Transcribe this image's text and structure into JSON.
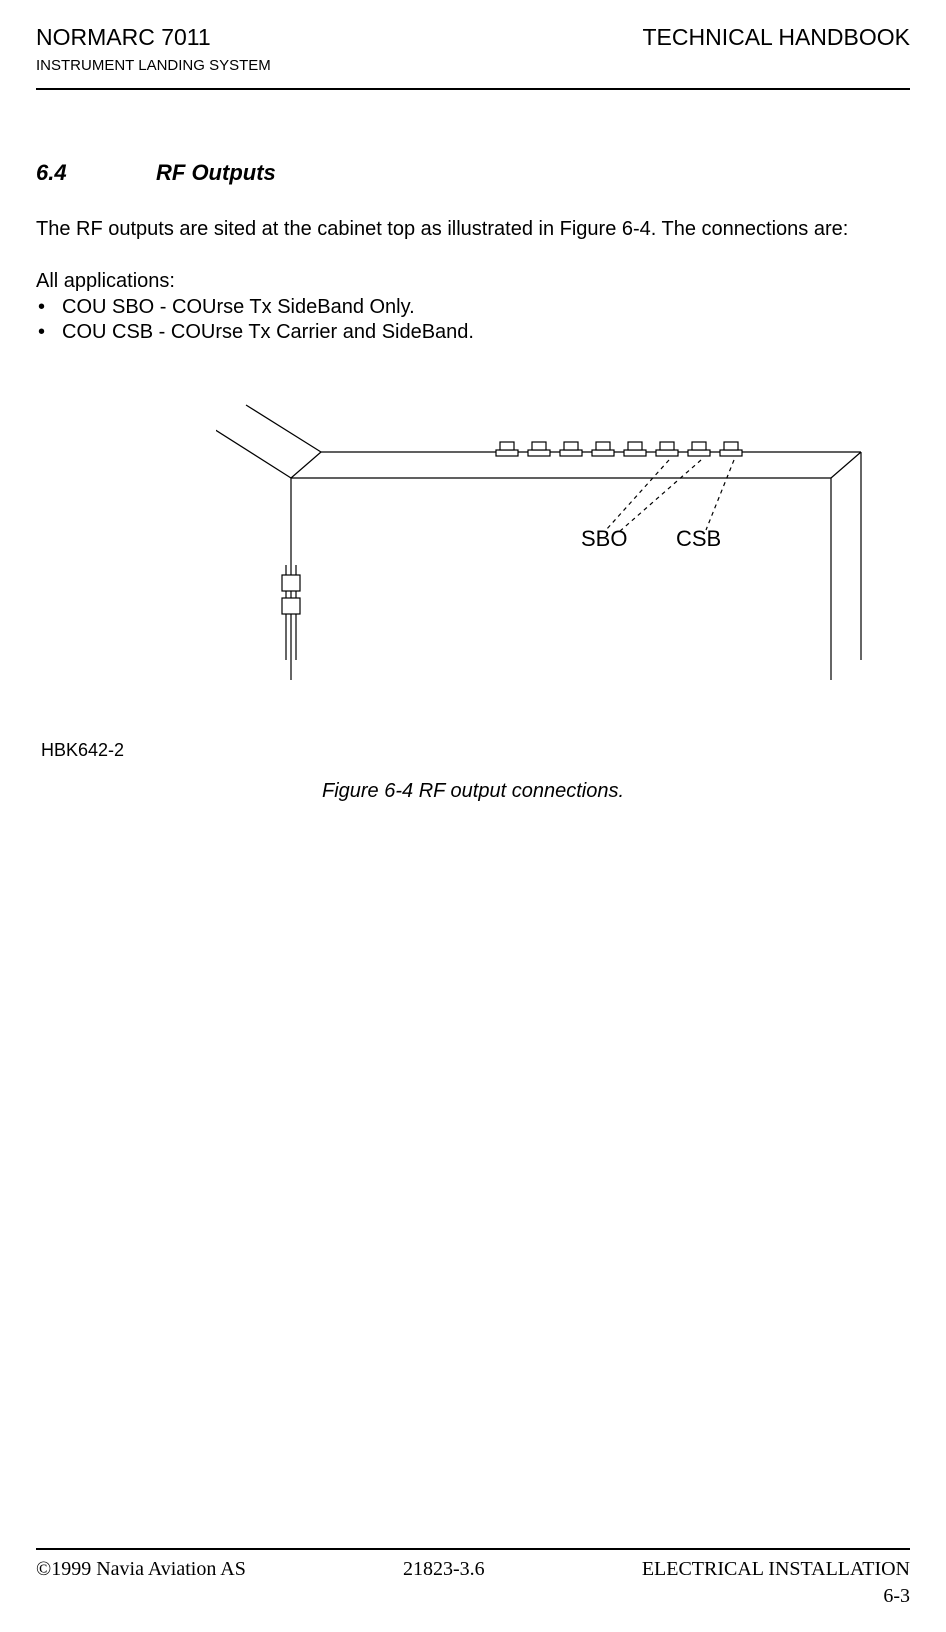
{
  "header": {
    "title_left": "NORMARC 7011",
    "title_right": "TECHNICAL HANDBOOK",
    "subtitle": "INSTRUMENT LANDING SYSTEM"
  },
  "section": {
    "number": "6.4",
    "title": "RF Outputs",
    "intro_text": "The RF outputs are sited at the cabinet top as illustrated in Figure 6-4. The connections are:",
    "list_intro": "All applications:",
    "bullets": [
      "COU SBO - COUrse Tx SideBand Only.",
      "COU CSB - COUrse Tx Carrier and SideBand."
    ]
  },
  "figure": {
    "labels": {
      "sbo": "SBO",
      "csb": "CSB"
    },
    "ref_code": "HBK642-2",
    "caption": "Figure 6-4 RF output connections.",
    "style": {
      "stroke": "#000000",
      "stroke_width": 1.2,
      "dash_pattern": "4,4",
      "font_size": 22,
      "font_family": "Arial, Helvetica, sans-serif",
      "connector_count": 8,
      "connector_width": 22,
      "connector_gap": 10
    }
  },
  "footer": {
    "left": "©1999 Navia Aviation AS",
    "center": "21823-3.6",
    "right": "ELECTRICAL INSTALLATION",
    "page": "6-3"
  }
}
